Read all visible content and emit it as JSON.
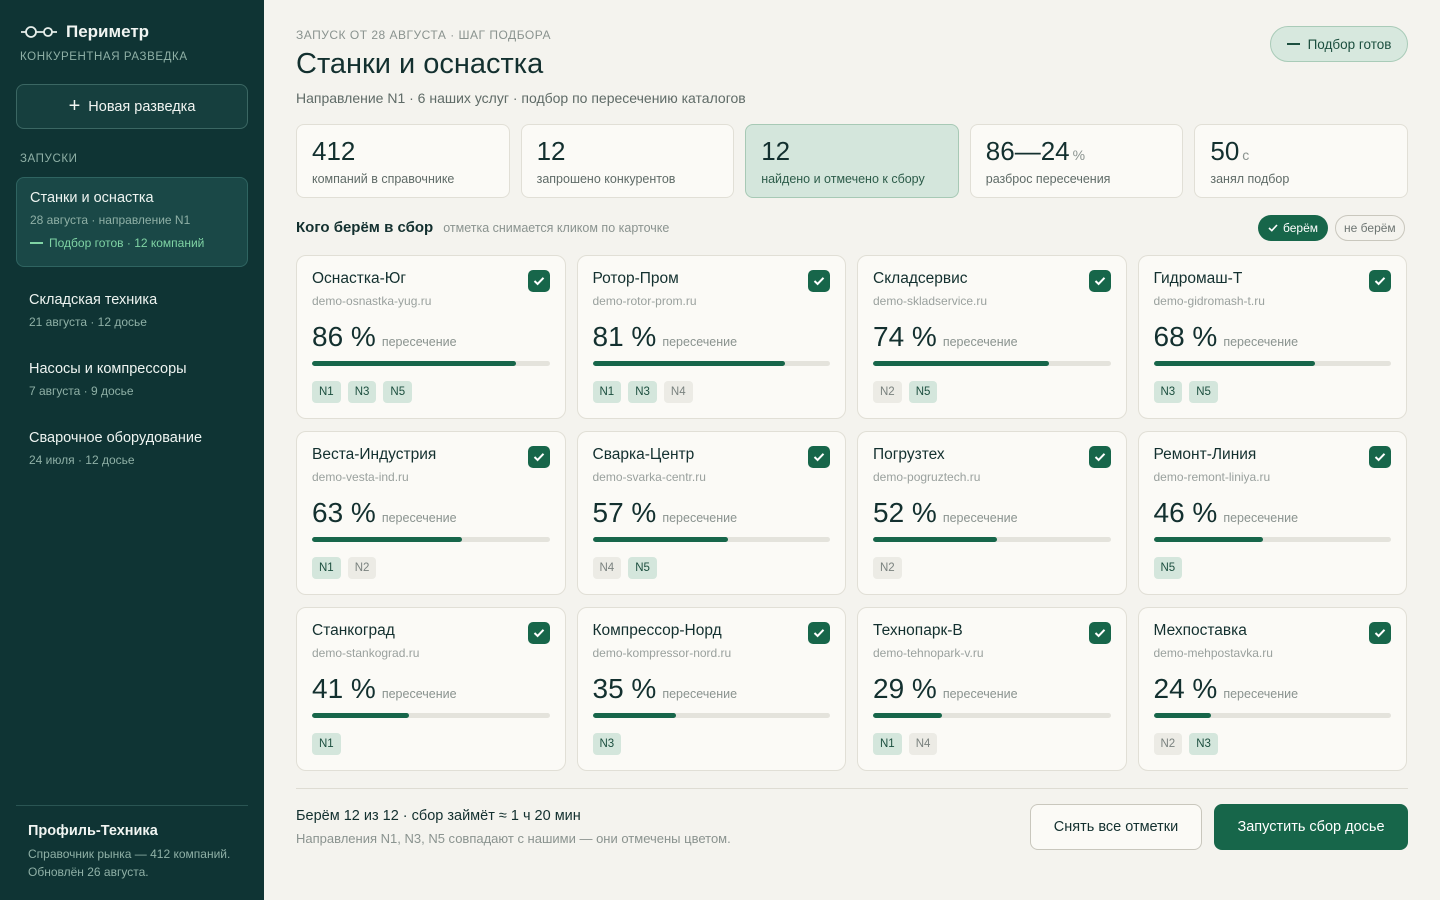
{
  "brand": {
    "name": "Периметр",
    "subtitle": "КОНКУРЕНТНАЯ РАЗВЕДКА"
  },
  "sidebar": {
    "new_button": "Новая разведка",
    "runs_title": "ЗАПУСКИ",
    "runs": [
      {
        "name": "Станки и оснастка",
        "meta": "28 августа · направление N1",
        "status": "Подбор готов · 12 компаний"
      },
      {
        "name": "Складская техника",
        "meta": "21 августа · 12 досье"
      },
      {
        "name": "Насосы и компрессоры",
        "meta": "7 августа · 9 досье"
      },
      {
        "name": "Сварочное оборудование",
        "meta": "24 июля · 12 досье"
      }
    ],
    "profile": {
      "name": "Профиль-Техника",
      "desc": "Справочник рынка — 412 компаний. Обновлён 26 августа."
    }
  },
  "header": {
    "crumb": "ЗАПУСК ОТ 28 АВГУСТА · ШАГ ПОДБОРА",
    "title": "Станки и оснастка",
    "subtitle": "Направление N1 · 6 наших услуг · подбор по пересечению каталогов",
    "ready_label": "Подбор готов"
  },
  "stats": [
    {
      "value": "412",
      "unit": "",
      "label": "компаний в справочнике"
    },
    {
      "value": "12",
      "unit": "",
      "label": "запрошено конкурентов"
    },
    {
      "value": "12",
      "unit": "",
      "label": "найдено и отмечено к сбору"
    },
    {
      "value": "86—24",
      "unit": "%",
      "label": "разброс пересечения"
    },
    {
      "value": "50",
      "unit": "с",
      "label": "занял подбор"
    }
  ],
  "section": {
    "title": "Кого берём в сбор",
    "hint": "отметка снимается кликом по карточке",
    "take_label": "берём",
    "skip_label": "не берём"
  },
  "pct_label": "пересечение",
  "companies": [
    {
      "name": "Оснастка-Юг",
      "domain": "demo-osnastka-yug.ru",
      "pct": 86,
      "pct_text": "86 %",
      "tags": [
        "N1",
        "N3",
        "N5"
      ]
    },
    {
      "name": "Ротор-Пром",
      "domain": "demo-rotor-prom.ru",
      "pct": 81,
      "pct_text": "81 %",
      "tags": [
        "N1",
        "N3",
        "N4"
      ]
    },
    {
      "name": "Складсервис",
      "domain": "demo-skladservice.ru",
      "pct": 74,
      "pct_text": "74 %",
      "tags": [
        "N2",
        "N5"
      ]
    },
    {
      "name": "Гидромаш-Т",
      "domain": "demo-gidromash-t.ru",
      "pct": 68,
      "pct_text": "68 %",
      "tags": [
        "N3",
        "N5"
      ]
    },
    {
      "name": "Веста-Индустрия",
      "domain": "demo-vesta-ind.ru",
      "pct": 63,
      "pct_text": "63 %",
      "tags": [
        "N1",
        "N2"
      ]
    },
    {
      "name": "Сварка-Центр",
      "domain": "demo-svarka-centr.ru",
      "pct": 57,
      "pct_text": "57 %",
      "tags": [
        "N4",
        "N5"
      ]
    },
    {
      "name": "Погрузтех",
      "domain": "demo-pogruztech.ru",
      "pct": 52,
      "pct_text": "52 %",
      "tags": [
        "N2"
      ]
    },
    {
      "name": "Ремонт-Линия",
      "domain": "demo-remont-liniya.ru",
      "pct": 46,
      "pct_text": "46 %",
      "tags": [
        "N5"
      ]
    },
    {
      "name": "Станкоград",
      "domain": "demo-stankograd.ru",
      "pct": 41,
      "pct_text": "41 %",
      "tags": [
        "N1"
      ]
    },
    {
      "name": "Компрессор-Норд",
      "domain": "demo-kompressor-nord.ru",
      "pct": 35,
      "pct_text": "35 %",
      "tags": [
        "N3"
      ]
    },
    {
      "name": "Технопарк-В",
      "domain": "demo-tehnopark-v.ru",
      "pct": 29,
      "pct_text": "29 %",
      "tags": [
        "N1",
        "N4"
      ]
    },
    {
      "name": "Мехпоставка",
      "domain": "demo-mehpostavka.ru",
      "pct": 24,
      "pct_text": "24 %",
      "tags": [
        "N2",
        "N3"
      ]
    }
  ],
  "matching_tags": [
    "N1",
    "N3",
    "N5"
  ],
  "footer": {
    "title": "Берём 12 из 12 · сбор займёт ≈ 1 ч 20 мин",
    "note": "Направления N1, N3, N5 совпадают с нашими — они отмечены цветом.",
    "clear_button": "Снять все отметки",
    "run_button": "Запустить сбор досье"
  },
  "colors": {
    "sidebar": "#0f3434",
    "accent": "#17664a",
    "background": "#f4f3ee"
  }
}
